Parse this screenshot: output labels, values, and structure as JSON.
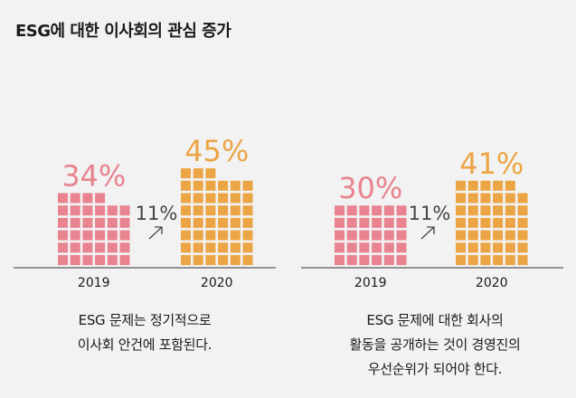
{
  "title": "ESG에 대한 이사회의 관심 증가",
  "colors": {
    "y2019": "#e8838f",
    "y2020": "#eba544",
    "axis": "#333333",
    "text": "#1a1a1a"
  },
  "chart_data": [
    {
      "type": "bar",
      "categories": [
        "2019",
        "2020"
      ],
      "values": [
        34,
        45
      ],
      "value_labels": [
        "34%",
        "45%"
      ],
      "change_label": "11%",
      "change_icon": "arrow-up-right-icon",
      "caption_lines": [
        "ESG 문제는 정기적으로",
        "이사회 안건에 포함된다."
      ]
    },
    {
      "type": "bar",
      "categories": [
        "2019",
        "2020"
      ],
      "values": [
        30,
        41
      ],
      "value_labels": [
        "30%",
        "41%"
      ],
      "change_label": "11%",
      "change_icon": "arrow-up-right-icon",
      "caption_lines": [
        "ESG 문제에 대한 회사의",
        "활동을 공개하는 것이 경영진의",
        "우선순위가 되어야 한다."
      ]
    }
  ]
}
